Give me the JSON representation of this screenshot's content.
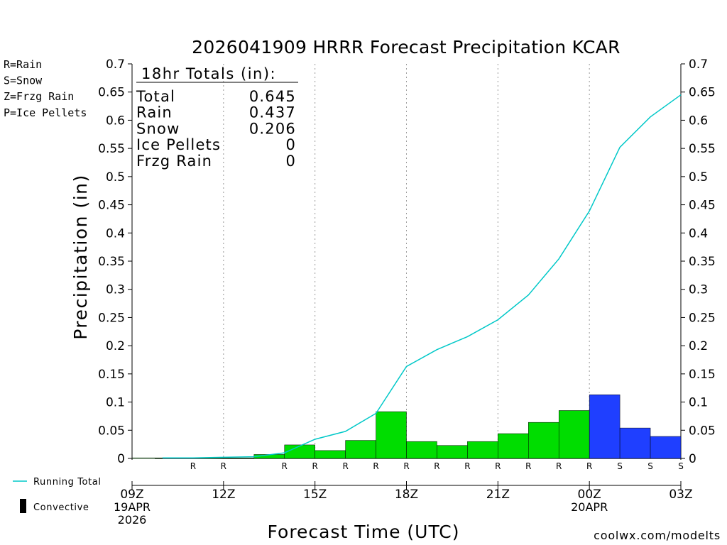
{
  "chart_data": {
    "type": "bar",
    "title": "2026041909 HRRR Forecast Precipitation KCAR",
    "xlabel": "Forecast Time (UTC)",
    "ylabel": "Precipitation (in)",
    "ylim": [
      0,
      0.7
    ],
    "xlim_hours": [
      9,
      27
    ],
    "y_ticks": [
      "0",
      "0.05",
      "0.1",
      "0.15",
      "0.2",
      "0.25",
      "0.3",
      "0.35",
      "0.4",
      "0.45",
      "0.5",
      "0.55",
      "0.6",
      "0.65",
      "0.7"
    ],
    "x_ticks": [
      {
        "hour": 9,
        "label": "09Z",
        "sub": [
          "19APR",
          "2026"
        ]
      },
      {
        "hour": 12,
        "label": "12Z",
        "sub": []
      },
      {
        "hour": 15,
        "label": "15Z",
        "sub": []
      },
      {
        "hour": 18,
        "label": "18Z",
        "sub": []
      },
      {
        "hour": 21,
        "label": "21Z",
        "sub": []
      },
      {
        "hour": 24,
        "label": "00Z",
        "sub": [
          "20APR"
        ]
      },
      {
        "hour": 27,
        "label": "03Z",
        "sub": []
      }
    ],
    "grid": "vertical dotted at 12Z, 15Z, 18Z, 21Z, 00Z",
    "series": [
      {
        "name": "Rain",
        "color": "#00dd00",
        "hours": [
          10,
          11,
          12,
          13,
          14,
          15,
          16,
          17,
          18,
          19,
          20,
          21,
          22,
          23,
          24
        ],
        "values": [
          0.001,
          0.001,
          0.001,
          0.001,
          0.007,
          0.024,
          0.014,
          0.032,
          0.083,
          0.03,
          0.023,
          0.03,
          0.044,
          0.064,
          0.085
        ]
      },
      {
        "name": "Snow",
        "color": "#1f3fff",
        "hours": [
          25,
          26,
          27
        ],
        "values": [
          0.113,
          0.054,
          0.039
        ]
      },
      {
        "name": "Running Total",
        "color": "#00c8c8",
        "hours": [
          10,
          11,
          12,
          13,
          14,
          15,
          16,
          17,
          18,
          19,
          20,
          21,
          22,
          23,
          24,
          25,
          26,
          27
        ],
        "values": [
          0.001,
          0.001,
          0.002,
          0.003,
          0.01,
          0.034,
          0.048,
          0.08,
          0.163,
          0.193,
          0.216,
          0.246,
          0.29,
          0.354,
          0.439,
          0.552,
          0.606,
          0.645
        ]
      }
    ],
    "precip_type_markers": [
      {
        "hour": 11,
        "code": "R"
      },
      {
        "hour": 12,
        "code": "R"
      },
      {
        "hour": 14,
        "code": "R"
      },
      {
        "hour": 15,
        "code": "R"
      },
      {
        "hour": 16,
        "code": "R"
      },
      {
        "hour": 17,
        "code": "R"
      },
      {
        "hour": 18,
        "code": "R"
      },
      {
        "hour": 19,
        "code": "R"
      },
      {
        "hour": 20,
        "code": "R"
      },
      {
        "hour": 21,
        "code": "R"
      },
      {
        "hour": 22,
        "code": "R"
      },
      {
        "hour": 23,
        "code": "R"
      },
      {
        "hour": 24,
        "code": "R"
      },
      {
        "hour": 25,
        "code": "S"
      },
      {
        "hour": 26,
        "code": "S"
      },
      {
        "hour": 27,
        "code": "S"
      }
    ],
    "marker_colors": {
      "R": "#00dd00",
      "S": "#1f3fff"
    },
    "totals_box": {
      "header": "18hr Totals (in):",
      "rows": [
        {
          "label": "Total",
          "value": "0.645"
        },
        {
          "label": "Rain",
          "value": "0.437"
        },
        {
          "label": "Snow",
          "value": "0.206"
        },
        {
          "label": "Ice Pellets",
          "value": "0"
        },
        {
          "label": "Frzg Rain",
          "value": "0"
        }
      ]
    },
    "type_legend": [
      {
        "text": "R=Rain",
        "color": "#00dd00"
      },
      {
        "text": "S=Snow",
        "color": "#1f3fff"
      },
      {
        "text": "Z=Frzg Rain",
        "color": "#ff8c1a"
      },
      {
        "text": "P=Ice Pellets",
        "color": "#ff1493"
      }
    ],
    "legend": {
      "running_total_label": "Running Total",
      "running_total_color": "#00c8c8",
      "convective_label": "Convective",
      "convective_color": "#000000"
    },
    "credit": "coolwx.com/modelts",
    "credit_color": "#dd0000"
  }
}
